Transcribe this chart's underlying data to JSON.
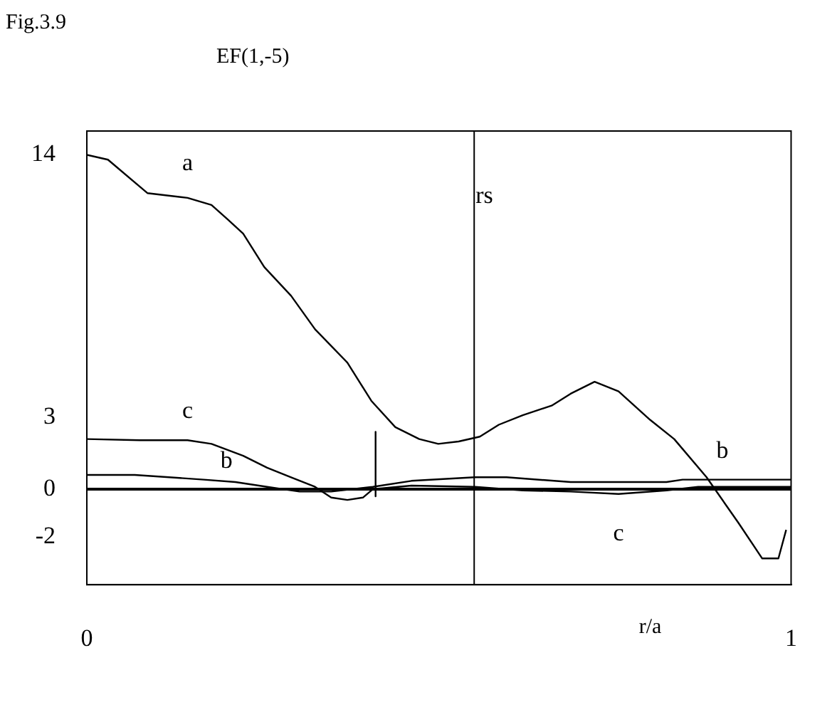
{
  "chart_data": {
    "type": "line",
    "title": "EF(1,-5)",
    "xlabel": "r/a",
    "xlim": [
      0,
      1
    ],
    "xticks": [
      0,
      1
    ],
    "ylim": [
      -4,
      15
    ],
    "yticks": [
      14,
      3,
      0,
      -2
    ],
    "grid": false,
    "legend": false,
    "marker": "none",
    "line_style": "solid",
    "series": [
      {
        "name": "a",
        "color": "#000000",
        "x": [
          0,
          0.03,
          0.086,
          0.143,
          0.177,
          0.2,
          0.222,
          0.252,
          0.29,
          0.324,
          0.37,
          0.404,
          0.438,
          0.472,
          0.499,
          0.528,
          0.558,
          0.585,
          0.619,
          0.66,
          0.687,
          0.721,
          0.755,
          0.8,
          0.834,
          0.88,
          0.925,
          0.959,
          0.982,
          0.993
        ],
        "values": [
          14.0,
          13.8,
          12.4,
          12.2,
          11.9,
          11.3,
          10.7,
          9.3,
          8.1,
          6.7,
          5.3,
          3.7,
          2.6,
          2.1,
          1.9,
          2.0,
          2.2,
          2.7,
          3.1,
          3.5,
          4.0,
          4.5,
          4.1,
          2.9,
          2.1,
          0.5,
          -1.4,
          -2.9,
          -2.9,
          -1.7
        ]
      },
      {
        "name": "b",
        "color": "#000000",
        "x": [
          0,
          0.068,
          0.166,
          0.211,
          0.256,
          0.302,
          0.347,
          0.406,
          0.461,
          0.551,
          0.596,
          0.687,
          0.823,
          0.846,
          1
        ],
        "values": [
          0.6,
          0.6,
          0.4,
          0.3,
          0.1,
          -0.1,
          -0.1,
          0.1,
          0.35,
          0.5,
          0.5,
          0.3,
          0.3,
          0.4,
          0.4
        ]
      },
      {
        "name": "c",
        "color": "#000000",
        "x": [
          0,
          0.075,
          0.143,
          0.177,
          0.222,
          0.256,
          0.29,
          0.324,
          0.347,
          0.37,
          0.392,
          0.406,
          0.461,
          0.551,
          0.619,
          0.687,
          0.755,
          0.823,
          0.868,
          1
        ],
        "values": [
          2.1,
          2.05,
          2.05,
          1.9,
          1.4,
          0.9,
          0.5,
          0.1,
          -0.35,
          -0.45,
          -0.35,
          0,
          0.15,
          0.1,
          -0.05,
          -0.1,
          -0.2,
          -0.05,
          0.1,
          0.1
        ]
      },
      {
        "color": "#000000",
        "x": [
          0.41,
          0.41
        ],
        "values": [
          2.4,
          -0.3
        ]
      }
    ],
    "ref_lines": [
      {
        "axis": "x",
        "value": 0.55,
        "label": "rs"
      },
      {
        "axis": "y",
        "value": 0
      }
    ],
    "annotations": [
      "Fig.3.9"
    ]
  }
}
